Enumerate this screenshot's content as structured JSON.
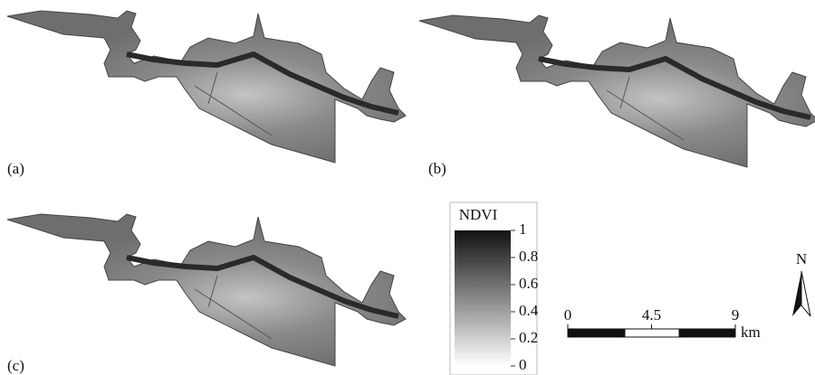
{
  "panels": [
    {
      "label": "(a)"
    },
    {
      "label": "(b)"
    },
    {
      "label": "(c)"
    }
  ],
  "legend": {
    "title": "NDVI",
    "ticks": [
      1,
      0.8,
      0.6,
      0.4,
      0.2,
      0
    ]
  },
  "scale_bar": {
    "ticks": [
      0,
      4.5,
      9
    ],
    "unit": "km"
  },
  "north_arrow": {
    "label": "N"
  }
}
